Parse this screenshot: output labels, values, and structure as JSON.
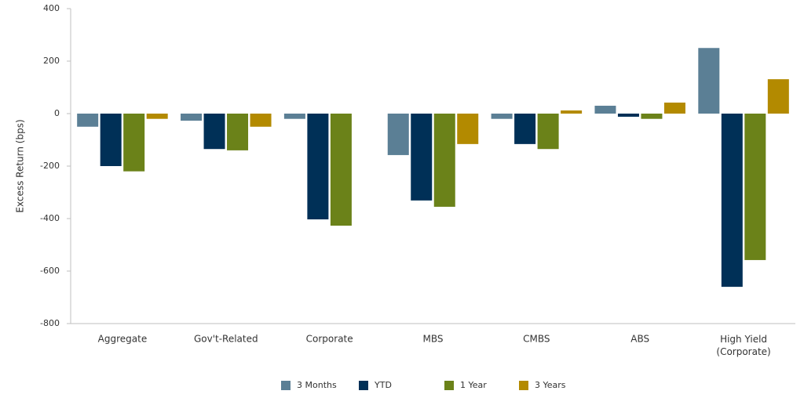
{
  "chart_data": {
    "type": "bar",
    "y_label": "Excess Return (bps)",
    "categories": [
      "Aggregate",
      "Gov't-Related",
      "Corporate",
      "MBS",
      "CMBS",
      "ABS",
      "High Yield (Corporate)"
    ],
    "series": [
      {
        "name": "3 Months",
        "color": "#5b7f95",
        "values": [
          -50,
          -27,
          -20,
          -158,
          -20,
          30,
          250
        ]
      },
      {
        "name": "YTD",
        "color": "#003057",
        "values": [
          -200,
          -135,
          -403,
          -331,
          -116,
          -12,
          -660
        ]
      },
      {
        "name": "1 Year",
        "color": "#6b8219",
        "values": [
          -220,
          -140,
          -427,
          -355,
          -135,
          -20,
          -558
        ]
      },
      {
        "name": "3 Years",
        "color": "#b38a00",
        "values": [
          -20,
          -50,
          0,
          -116,
          12,
          42,
          131
        ]
      }
    ],
    "ylim": [
      -800,
      400
    ],
    "yticks": [
      -800,
      -600,
      -400,
      -200,
      0,
      200,
      400
    ],
    "grid": false,
    "legend": "bottom"
  }
}
